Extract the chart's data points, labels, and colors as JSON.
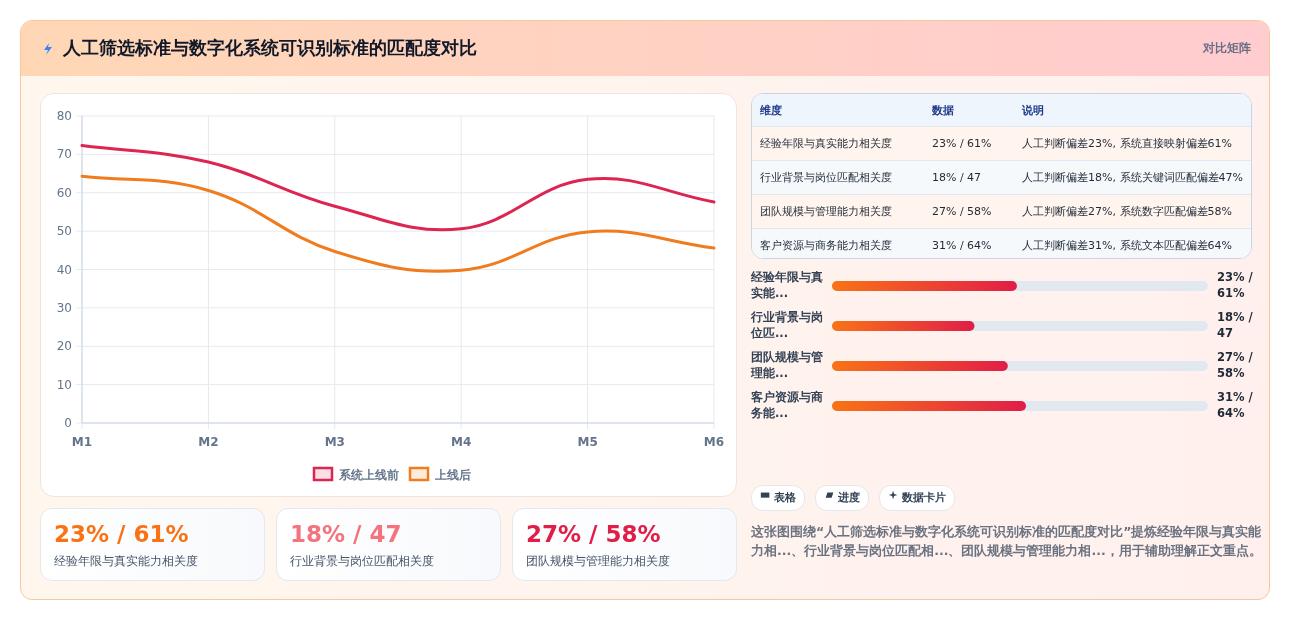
{
  "chart_data": [
    {
      "type": "other",
      "title": "人工筛选标准与数字化系统可识别标准的匹配度对比",
      "subtitle": "对比矩阵"
    },
    {
      "type": "line",
      "categories": [
        "M1",
        "M2",
        "M3",
        "M4",
        "M5",
        "M6"
      ],
      "series": [
        {
          "name": "系统上线前",
          "color": "#dc2651",
          "values": [
            72.3,
            68.0,
            56.5,
            50.6,
            63.5,
            57.6
          ]
        },
        {
          "name": "上线后",
          "color": "#f07c1e",
          "values": [
            64.3,
            60.6,
            44.7,
            39.8,
            49.8,
            45.6
          ]
        }
      ],
      "ylim": [
        0,
        80
      ],
      "yticks": [
        0,
        10,
        20,
        30,
        40,
        50,
        60,
        70,
        80
      ],
      "grid": true,
      "legend": "bottom"
    },
    {
      "type": "other",
      "annotations": [
        "维度",
        "数据",
        "说明",
        "经验年限与真实能力相关度",
        "23% / 61%",
        "人工判断偏差23%, 系统直接映射偏差61%",
        "行业背景与岗位匹配相关度",
        "18% / 47",
        "人工判断偏差18%, 系统关键词匹配偏差47%",
        "团队规模与管理能力相关度",
        "27% / 58%",
        "人工判断偏差27%, 系统数字匹配偏差58%",
        "客户资源与商务能力相关度",
        "31% / 64%",
        "人工判断偏差31%, 系统文本匹配偏差64%"
      ]
    },
    {
      "type": "bar",
      "orientation": "horizontal",
      "color": "#e11d48",
      "categories": [
        "经验年限与真实能...",
        "行业背景与岗位匹...",
        "团队规模与管理能...",
        "客户资源与商务能..."
      ],
      "values": [
        61,
        47,
        58,
        64
      ],
      "value_labels": [
        "23% / 61%",
        "18% / 47",
        "27% / 58%",
        "31% / 64%"
      ]
    },
    {
      "type": "other",
      "colors": [
        "#f97316",
        "#f4737f",
        "#e11d48"
      ],
      "annotations": [
        "23% / 61%",
        "经验年限与真实能力相关度",
        "18% / 47",
        "行业背景与岗位匹配相关度",
        "27% / 58%",
        "团队规模与管理能力相关度",
        "表格",
        "进度",
        "数据卡片",
        "这张图围绕“人工筛选标准与数字化系统可识别标准的匹配度对比”提炼经验年限与真实能力相...、行业背景与岗位匹配相...、团队规模与管理能力相...，用于辅助理解正文重点。"
      ]
    }
  ]
}
